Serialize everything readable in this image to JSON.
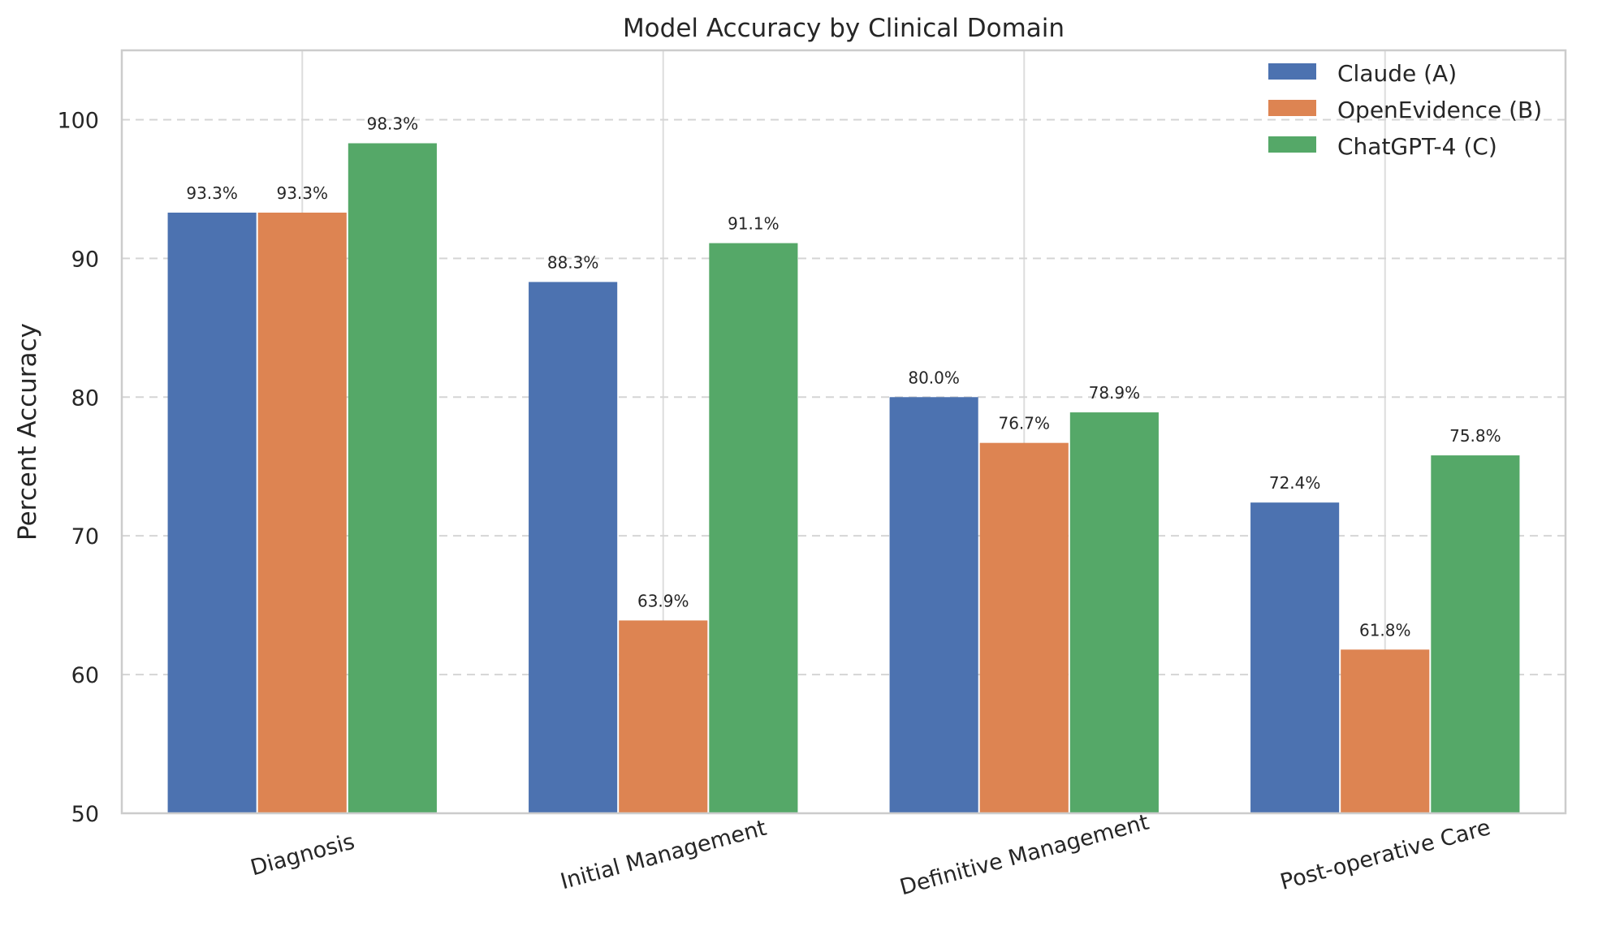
{
  "chart_data": {
    "type": "bar",
    "title": "Model Accuracy by Clinical Domain",
    "xlabel": "",
    "ylabel": "Percent Accuracy",
    "ylim": [
      50,
      105
    ],
    "yticks": [
      50,
      60,
      70,
      80,
      90,
      100
    ],
    "grid": true,
    "legend_position": "top-right",
    "categories": [
      "Diagnosis",
      "Initial Management",
      "Definitive Management",
      "Post-operative Care"
    ],
    "series": [
      {
        "name": "Claude (A)",
        "color": "#4c72b0",
        "values": [
          93.3,
          88.3,
          80.0,
          72.4
        ],
        "labels": [
          "93.3%",
          "88.3%",
          "80.0%",
          "72.4%"
        ]
      },
      {
        "name": "OpenEvidence (B)",
        "color": "#dd8452",
        "values": [
          93.3,
          63.9,
          76.7,
          61.8
        ],
        "labels": [
          "93.3%",
          "63.9%",
          "76.7%",
          "61.8%"
        ]
      },
      {
        "name": "ChatGPT-4 (C)",
        "color": "#55a868",
        "values": [
          98.3,
          91.1,
          78.9,
          75.8
        ],
        "labels": [
          "98.3%",
          "91.1%",
          "78.9%",
          "75.8%"
        ]
      }
    ]
  }
}
